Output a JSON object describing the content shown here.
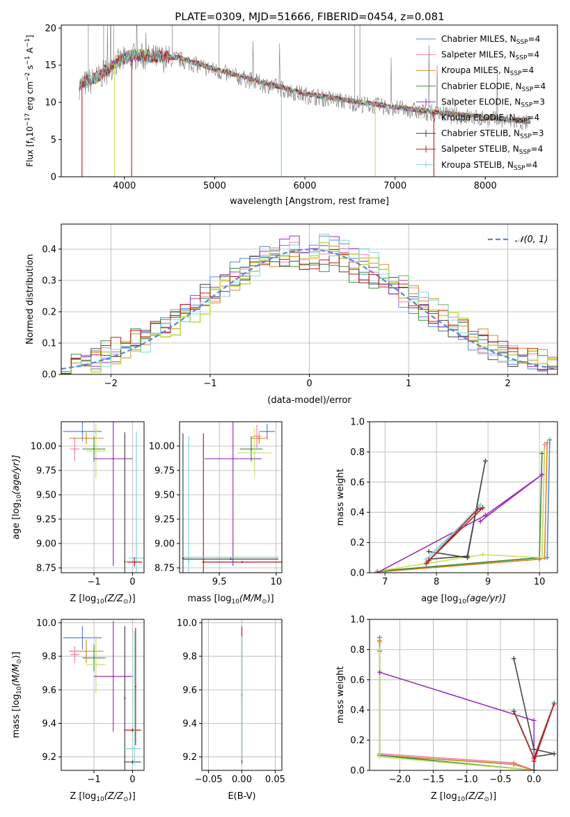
{
  "title": "PLATE=0309, MJD=51666, FIBERID=0454, z=0.081",
  "colors": {
    "chabrier_miles": "#5b84d6",
    "salpeter_miles": "#f07fae",
    "kroupa_miles": "#d68a1e",
    "chabrier_elodie": "#3a8a3a",
    "salpeter_elodie": "#9b2fb8",
    "kroupa_elodie": "#c8e060",
    "chabrier_stelib": "#444444",
    "salpeter_stelib": "#c01818",
    "kroupa_stelib": "#7fd6dc",
    "data": "#7a7a7a",
    "normal": "#5b84d6",
    "grid": "#b0b0b0"
  },
  "legend_models": [
    {
      "key": "chabrier_miles",
      "label": "Chabrier MILES, N",
      "sub": "SSP",
      "suffix": "=4"
    },
    {
      "key": "salpeter_miles",
      "label": "Salpeter MILES, N",
      "sub": "SSP",
      "suffix": "=4"
    },
    {
      "key": "kroupa_miles",
      "label": "Kroupa MILES, N",
      "sub": "SSP",
      "suffix": "=4"
    },
    {
      "key": "chabrier_elodie",
      "label": "Chabrier ELODIE, N",
      "sub": "SSP",
      "suffix": "=4"
    },
    {
      "key": "salpeter_elodie",
      "label": "Salpeter ELODIE, N",
      "sub": "SSP",
      "suffix": "=3"
    },
    {
      "key": "kroupa_elodie",
      "label": "Kroupa ELODIE, N",
      "sub": "SSP",
      "suffix": "=4"
    },
    {
      "key": "chabrier_stelib",
      "label": "Chabrier STELIB, N",
      "sub": "SSP",
      "suffix": "=3"
    },
    {
      "key": "salpeter_stelib",
      "label": "Salpeter STELIB, N",
      "sub": "SSP",
      "suffix": "=4"
    },
    {
      "key": "kroupa_stelib",
      "label": "Kroupa STELIB, N",
      "sub": "SSP",
      "suffix": "=4"
    }
  ],
  "chart_data": [
    {
      "id": "spectrum",
      "type": "line",
      "xlabel": "wavelength [Angstrom, rest frame]",
      "ylabel": "Flux [f",
      "ylabel_sub": "λ",
      "ylabel_rest": "10",
      "ylabel_exp": "−17",
      "ylabel_tail": " erg cm",
      "ylabel_exp2": "−2",
      "ylabel_tail2": " s",
      "ylabel_exp3": "−1",
      "ylabel_tail3": " A",
      "ylabel_exp4": "−1",
      "ylabel_end": "]",
      "xlim": [
        3300,
        8800
      ],
      "ylim": [
        0,
        20.4
      ],
      "xticks": [
        4000,
        5000,
        6000,
        7000,
        8000
      ],
      "yticks": [
        0,
        5,
        10,
        15,
        20
      ],
      "continuum": [
        [
          3500,
          12.2
        ],
        [
          3700,
          13.2
        ],
        [
          3900,
          15.2
        ],
        [
          4100,
          16.2
        ],
        [
          4300,
          16.0
        ],
        [
          4600,
          15.8
        ],
        [
          5000,
          14.3
        ],
        [
          5500,
          12.6
        ],
        [
          6000,
          11.0
        ],
        [
          6500,
          10.0
        ],
        [
          7000,
          9.2
        ],
        [
          7500,
          8.4
        ],
        [
          8000,
          7.8
        ],
        [
          8500,
          7.2
        ]
      ],
      "model_dropouts": [
        [
          3530,
          "salpeter_stelib"
        ],
        [
          3890,
          "kroupa_elodie"
        ],
        [
          4080,
          "salpeter_stelib"
        ],
        [
          5740,
          "kroupa_stelib"
        ],
        [
          6780,
          "kroupa_elodie"
        ],
        [
          7430,
          "salpeter_stelib"
        ]
      ]
    },
    {
      "id": "residuals",
      "type": "line",
      "xlabel": "(data-model)/error",
      "ylabel": "Normed distribution",
      "xlim": [
        -2.5,
        2.5
      ],
      "ylim": [
        0,
        0.48
      ],
      "xticks": [
        -2,
        -1,
        0,
        1,
        2
      ],
      "yticks": [
        0.0,
        0.1,
        0.2,
        0.3,
        0.4
      ],
      "legend": "𝒩(0, 1)",
      "bin_width": 0.1
    },
    {
      "id": "age_vs_Z",
      "type": "scatter",
      "xlabel": "Z [log",
      "xlabel_sub": "10",
      "xlabel_tail": "(Z/Z",
      "xlabel_sub2": "⊙",
      "xlabel_end": ")]",
      "ylabel": "age  [log",
      "ylabel_sub": "10",
      "ylabel_tail": "(age/yr)]",
      "xlim": [
        -1.85,
        0.3
      ],
      "ylim": [
        8.7,
        10.25
      ],
      "xticks": [
        -1,
        0
      ],
      "yticks": [
        8.75,
        9.0,
        9.25,
        9.5,
        9.75,
        10.0
      ],
      "points": [
        {
          "model": "chabrier_miles",
          "x": -1.3,
          "xerr": 0.5,
          "y": 10.15,
          "yerr": 0.1
        },
        {
          "model": "kroupa_miles",
          "x": -1.2,
          "xerr": 0.45,
          "y": 10.08,
          "yerr": 0.06
        },
        {
          "model": "salpeter_miles",
          "x": -1.5,
          "xerr": 0.12,
          "y": 9.97,
          "yerr": 0.12
        },
        {
          "model": "chabrier_elodie",
          "x": -1.0,
          "xerr": 0.3,
          "y": 9.97,
          "yerr": 0.13
        },
        {
          "model": "kroupa_elodie",
          "x": -0.95,
          "xerr": 0.25,
          "y": 9.95,
          "yerr": 0.28
        },
        {
          "model": "salpeter_elodie",
          "x": -0.5,
          "xerr": 0.5,
          "y": 9.87,
          "yerr": 1.1
        },
        {
          "model": "chabrier_stelib",
          "x": -0.2,
          "xerr": 0.01,
          "y": 8.81,
          "yerr": 1.33
        },
        {
          "model": "kroupa_stelib",
          "x": 0.1,
          "xerr": 0.2,
          "y": 8.85,
          "yerr": 1.3
        },
        {
          "model": "salpeter_stelib",
          "x": 0.05,
          "xerr": 0.2,
          "y": 8.81,
          "yerr": 0.05
        }
      ]
    },
    {
      "id": "age_vs_mass",
      "type": "scatter",
      "xlabel": "mass [log",
      "xlabel_sub": "10",
      "xlabel_tail": "(M/M",
      "xlabel_sub2": "⊙",
      "xlabel_end": ")]",
      "xlim": [
        9.15,
        10.05
      ],
      "ylim": [
        8.7,
        10.25
      ],
      "xticks": [
        9.5,
        10.0
      ],
      "yticks": [
        8.75,
        9.0,
        9.25,
        9.5,
        9.75,
        10.0
      ],
      "points": [
        {
          "model": "chabrier_miles",
          "x": 9.92,
          "xerr": 0.07,
          "y": 10.15,
          "yerr": 0.08
        },
        {
          "model": "kroupa_miles",
          "x": 9.85,
          "xerr": 0.07,
          "y": 10.08,
          "yerr": 0.06
        },
        {
          "model": "salpeter_miles",
          "x": 9.83,
          "xerr": 0.04,
          "y": 10.1,
          "yerr": 0.12
        },
        {
          "model": "chabrier_elodie",
          "x": 9.78,
          "xerr": 0.1,
          "y": 9.97,
          "yerr": 0.13
        },
        {
          "model": "kroupa_elodie",
          "x": 9.81,
          "xerr": 0.15,
          "y": 9.93,
          "yerr": 0.25
        },
        {
          "model": "salpeter_elodie",
          "x": 9.62,
          "xerr": 0.25,
          "y": 9.87,
          "yerr": 1.1
        },
        {
          "model": "chabrier_stelib",
          "x": 9.18,
          "xerr": 0.01,
          "y": 8.85,
          "yerr": 1.28
        },
        {
          "model": "kroupa_stelib",
          "x": 9.23,
          "xerr": 0.01,
          "y": 8.82,
          "yerr": 1.28
        },
        {
          "model": "salpeter_stelib",
          "x": 9.36,
          "xerr": 0.01,
          "y": 8.81,
          "yerr": 1.32
        },
        {
          "model": "chabrier_stelib",
          "x": 9.6,
          "xerr": 0.42,
          "y": 8.84,
          "yerr": 0.01
        },
        {
          "model": "kroupa_stelib",
          "x": 9.6,
          "xerr": 0.42,
          "y": 8.86,
          "yerr": 0.01
        },
        {
          "model": "salpeter_stelib",
          "x": 9.7,
          "xerr": 0.35,
          "y": 8.81,
          "yerr": 0.01
        }
      ]
    },
    {
      "id": "weight_vs_age",
      "type": "line",
      "xlabel": "age  [log",
      "xlabel_sub": "10",
      "xlabel_tail": "(age/yr)]",
      "ylabel": "mass weight",
      "xlim": [
        6.7,
        10.35
      ],
      "ylim": [
        0,
        1.0
      ],
      "xticks": [
        7,
        8,
        9,
        10
      ],
      "yticks": [
        0.0,
        0.2,
        0.4,
        0.6,
        0.8,
        1.0
      ],
      "series": [
        {
          "model": "chabrier_miles",
          "x": [
            6.85,
            10.0,
            10.15,
            10.2
          ],
          "y": [
            0.005,
            0.09,
            0.1,
            0.88
          ]
        },
        {
          "model": "salpeter_miles",
          "x": [
            6.85,
            10.0,
            10.05,
            10.1
          ],
          "y": [
            0.005,
            0.09,
            0.1,
            0.85
          ]
        },
        {
          "model": "kroupa_miles",
          "x": [
            6.85,
            10.0,
            10.1,
            10.15
          ],
          "y": [
            0.005,
            0.09,
            0.1,
            0.86
          ]
        },
        {
          "model": "chabrier_elodie",
          "x": [
            6.85,
            10.0,
            10.05
          ],
          "y": [
            0.01,
            0.1,
            0.79
          ]
        },
        {
          "model": "kroupa_elodie",
          "x": [
            6.85,
            8.9,
            10.05,
            10.1
          ],
          "y": [
            0.01,
            0.12,
            0.1,
            0.8
          ]
        },
        {
          "model": "salpeter_elodie",
          "x": [
            6.85,
            8.95,
            10.05,
            8.85
          ],
          "y": [
            0.0,
            0.38,
            0.65,
            0.34
          ]
        },
        {
          "model": "chabrier_stelib",
          "x": [
            7.85,
            8.6,
            8.95,
            8.6,
            7.85
          ],
          "y": [
            0.14,
            0.1,
            0.74,
            0.11,
            0.09
          ]
        },
        {
          "model": "kroupa_stelib",
          "x": [
            7.8,
            8.85,
            8.85,
            7.8
          ],
          "y": [
            0.07,
            0.45,
            0.44,
            0.09
          ]
        },
        {
          "model": "salpeter_stelib",
          "x": [
            7.8,
            8.8,
            8.9,
            7.85
          ],
          "y": [
            0.06,
            0.42,
            0.43,
            0.08
          ]
        }
      ]
    },
    {
      "id": "mass_vs_Z",
      "type": "scatter",
      "xlabel": "Z [log",
      "xlabel_sub": "10",
      "xlabel_tail": "(Z/Z",
      "xlabel_sub2": "⊙",
      "xlabel_end": ")]",
      "ylabel": "mass [log",
      "ylabel_sub": "10",
      "ylabel_tail": "(M/M",
      "ylabel_sub2": "⊙",
      "ylabel_end": ")]",
      "xlim": [
        -1.85,
        0.3
      ],
      "ylim": [
        9.12,
        10.02
      ],
      "xticks": [
        -1,
        0
      ],
      "yticks": [
        9.2,
        9.4,
        9.6,
        9.8,
        10.0
      ],
      "points": [
        {
          "model": "chabrier_miles",
          "x": -1.3,
          "xerr": 0.5,
          "y": 9.91,
          "yerr": 0.07
        },
        {
          "model": "kroupa_miles",
          "x": -1.2,
          "xerr": 0.45,
          "y": 9.83,
          "yerr": 0.07
        },
        {
          "model": "salpeter_miles",
          "x": -1.5,
          "xerr": 0.12,
          "y": 9.81,
          "yerr": 0.05
        },
        {
          "model": "chabrier_elodie",
          "x": -1.0,
          "xerr": 0.3,
          "y": 9.79,
          "yerr": 0.08
        },
        {
          "model": "kroupa_elodie",
          "x": -0.95,
          "xerr": 0.25,
          "y": 9.75,
          "yerr": 0.17
        },
        {
          "model": "salpeter_elodie",
          "x": -0.5,
          "xerr": 0.5,
          "y": 9.68,
          "yerr": 0.33
        },
        {
          "model": "chabrier_stelib",
          "x": -0.2,
          "xerr": 0.01,
          "y": 9.55,
          "yerr": 0.43
        },
        {
          "model": "chabrier_stelib",
          "x": -0.0,
          "xerr": 0.22,
          "y": 9.17,
          "yerr": 0.01
        },
        {
          "model": "salpeter_stelib",
          "x": 0.08,
          "xerr": 0.01,
          "y": 9.62,
          "yerr": 0.35
        },
        {
          "model": "salpeter_stelib",
          "x": 0.0,
          "xerr": 0.22,
          "y": 9.36,
          "yerr": 0.01
        },
        {
          "model": "kroupa_stelib",
          "x": 0.05,
          "xerr": 0.01,
          "y": 9.55,
          "yerr": 0.4
        },
        {
          "model": "kroupa_stelib",
          "x": -0.0,
          "xerr": 0.22,
          "y": 9.25,
          "yerr": 0.01
        }
      ]
    },
    {
      "id": "mass_vs_ebv",
      "type": "scatter",
      "xlabel": "E(B-V)",
      "xlim": [
        -0.06,
        0.06
      ],
      "ylim": [
        9.12,
        10.02
      ],
      "xticks": [
        -0.05,
        0.0,
        0.05
      ],
      "xticklabels": [
        "−0.05",
        "0.00",
        "0.05"
      ],
      "yticks": [
        9.2,
        9.4,
        9.6,
        9.8,
        10.0
      ],
      "points": [
        {
          "model": "salpeter_stelib",
          "x": 0.0,
          "xerr": 0.0,
          "y": 9.57,
          "yerr": 0.41
        },
        {
          "model": "chabrier_stelib",
          "x": 0.0,
          "xerr": 0.0,
          "y": 9.55,
          "yerr": 0.38
        },
        {
          "model": "kroupa_stelib",
          "x": 0.0,
          "xerr": 0.0,
          "y": 9.55,
          "yerr": 0.37
        }
      ]
    },
    {
      "id": "weight_vs_Z",
      "type": "line",
      "xlabel": "Z [log",
      "xlabel_sub": "10",
      "xlabel_tail": "(Z/Z",
      "xlabel_sub2": "⊙",
      "xlabel_end": ")]",
      "ylabel": "mass weight",
      "xlim": [
        -2.45,
        0.35
      ],
      "ylim": [
        0,
        1.0
      ],
      "xticks": [
        -2.0,
        -1.5,
        -1.0,
        -0.5,
        0.0
      ],
      "xticklabels": [
        "−2.0",
        "−1.5",
        "−1.0",
        "−0.5",
        "0.0"
      ],
      "yticks": [
        0.0,
        0.2,
        0.4,
        0.6,
        0.8,
        1.0
      ],
      "series": [
        {
          "model": "chabrier_miles",
          "x": [
            -2.3,
            -2.3,
            -0.3,
            0.0
          ],
          "y": [
            0.88,
            0.1,
            0.04,
            0.0
          ]
        },
        {
          "model": "salpeter_miles",
          "x": [
            -2.3,
            -2.3,
            -0.3,
            0.0
          ],
          "y": [
            0.85,
            0.11,
            0.05,
            0.0
          ]
        },
        {
          "model": "kroupa_miles",
          "x": [
            -2.3,
            -2.3,
            -0.3,
            0.0
          ],
          "y": [
            0.86,
            0.1,
            0.04,
            0.0
          ]
        },
        {
          "model": "chabrier_elodie",
          "x": [
            -2.3,
            -2.3,
            0.0
          ],
          "y": [
            0.79,
            0.1,
            0.0
          ]
        },
        {
          "model": "kroupa_elodie",
          "x": [
            -2.3,
            -2.3,
            0.0
          ],
          "y": [
            0.8,
            0.09,
            0.0
          ]
        },
        {
          "model": "salpeter_elodie",
          "x": [
            -2.3,
            -0.0,
            0.0
          ],
          "y": [
            0.65,
            0.33,
            0.0
          ]
        },
        {
          "model": "chabrier_stelib",
          "x": [
            -0.3,
            0.0,
            0.3,
            0.0,
            0.0
          ],
          "y": [
            0.74,
            0.14,
            0.11,
            0.09,
            0.0
          ]
        },
        {
          "model": "kroupa_stelib",
          "x": [
            -0.3,
            0.0,
            0.3,
            0.0
          ],
          "y": [
            0.4,
            0.09,
            0.45,
            0.07
          ]
        },
        {
          "model": "salpeter_stelib",
          "x": [
            -0.3,
            0.0,
            0.3,
            0.0
          ],
          "y": [
            0.39,
            0.08,
            0.44,
            0.06
          ]
        }
      ]
    }
  ]
}
